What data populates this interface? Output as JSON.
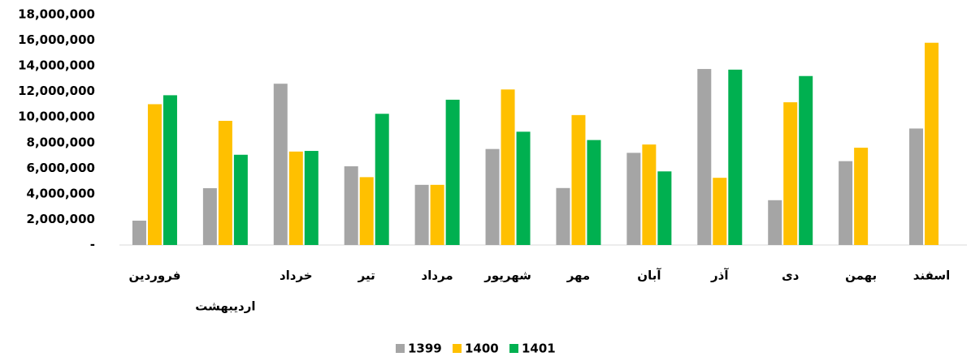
{
  "chart_data": {
    "type": "bar",
    "categories": [
      "فروردین",
      "اردیبهشت",
      "خرداد",
      "تیر",
      "مرداد",
      "شهریور",
      "مهر",
      "آبان",
      "آذر",
      "دی",
      "بهمن",
      "اسفند"
    ],
    "series": [
      {
        "name": "1399",
        "color": "#a5a5a5",
        "values": [
          1900000,
          4440000,
          12600000,
          6150000,
          4700000,
          7500000,
          4450000,
          7200000,
          13750000,
          3500000,
          6550000,
          9100000
        ]
      },
      {
        "name": "1400",
        "color": "#ffc000",
        "values": [
          11000000,
          9700000,
          7300000,
          5300000,
          4700000,
          12150000,
          10150000,
          7850000,
          5250000,
          11150000,
          7600000,
          15800000
        ]
      },
      {
        "name": "1401",
        "color": "#00b050",
        "values": [
          11700000,
          7050000,
          7350000,
          10250000,
          11350000,
          8850000,
          8200000,
          5750000,
          13700000,
          13200000,
          null,
          null
        ]
      }
    ],
    "ylim": [
      0,
      18000000
    ],
    "yticks": [
      {
        "value": 0,
        "label": "-"
      },
      {
        "value": 2000000,
        "label": "2,000,000"
      },
      {
        "value": 4000000,
        "label": "4,000,000"
      },
      {
        "value": 6000000,
        "label": "6,000,000"
      },
      {
        "value": 8000000,
        "label": "8,000,000"
      },
      {
        "value": 10000000,
        "label": "10,000,000"
      },
      {
        "value": 12000000,
        "label": "12,000,000"
      },
      {
        "value": 14000000,
        "label": "14,000,000"
      },
      {
        "value": 16000000,
        "label": "16,000,000"
      },
      {
        "value": 18000000,
        "label": "18,000,000"
      }
    ],
    "grid": false,
    "legend": "bottom"
  }
}
